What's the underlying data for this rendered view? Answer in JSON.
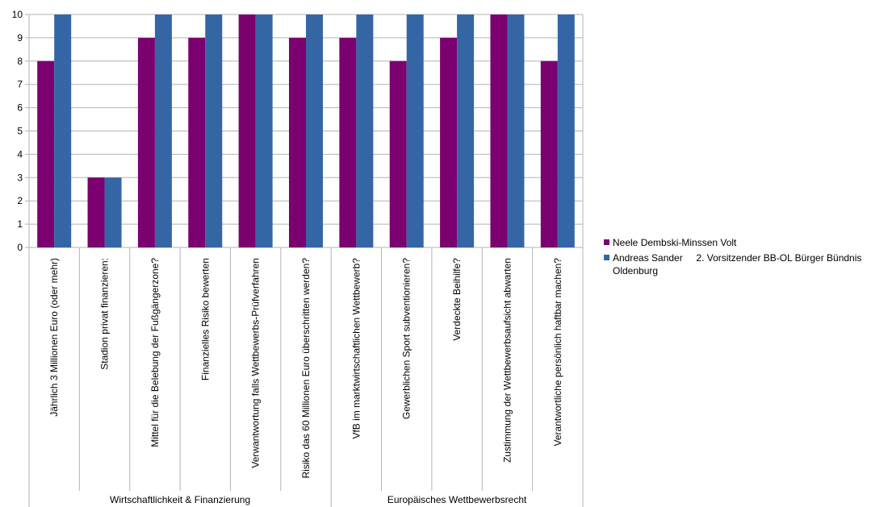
{
  "chart_data": {
    "type": "bar",
    "ylim": [
      0,
      10
    ],
    "yticks": [
      0,
      1,
      2,
      3,
      4,
      5,
      6,
      7,
      8,
      9,
      10
    ],
    "grid": true,
    "legend_position": "right",
    "categories": [
      "Jährlich 3 Millionen Euro (oder mehr)",
      "Stadion privat finanzieren:",
      "Mittel für die Belebung der Fußgängerzone?",
      "Finanzielles Risiko bewerten",
      "Verwantwortung falls Wettbewerbs-Prüfverfahren",
      "Risiko das 60 Millionen Euro überschritten werden?",
      "VfB im marktwirtschaftlichen Wettbewerb?",
      "Gewerblichen Sport subventionieren?",
      "Verdeckte Beihilfe?",
      "Zustimmung der Wettbewerbsaufsicht abwarten",
      "Verantwortliche persönlich haftbar machen?"
    ],
    "groups": [
      {
        "label": "Wirtschaftlichkeit & Finanzierung",
        "span": 6
      },
      {
        "label": "Europäisches Wettbewerbsrecht",
        "span": 5
      }
    ],
    "series": [
      {
        "name": "Neele Dembski-Minssen Volt",
        "color": "#7b0070",
        "values": [
          8,
          3,
          9,
          9,
          10,
          9,
          9,
          8,
          9,
          10,
          8
        ]
      },
      {
        "name_lines": [
          "Andreas Sander     2. Vorsitzender BB-OL Bürger Bündnis",
          "Oldenburg"
        ],
        "color": "#3466a6",
        "values": [
          10,
          3,
          10,
          10,
          10,
          10,
          10,
          10,
          10,
          10,
          10
        ]
      }
    ]
  }
}
